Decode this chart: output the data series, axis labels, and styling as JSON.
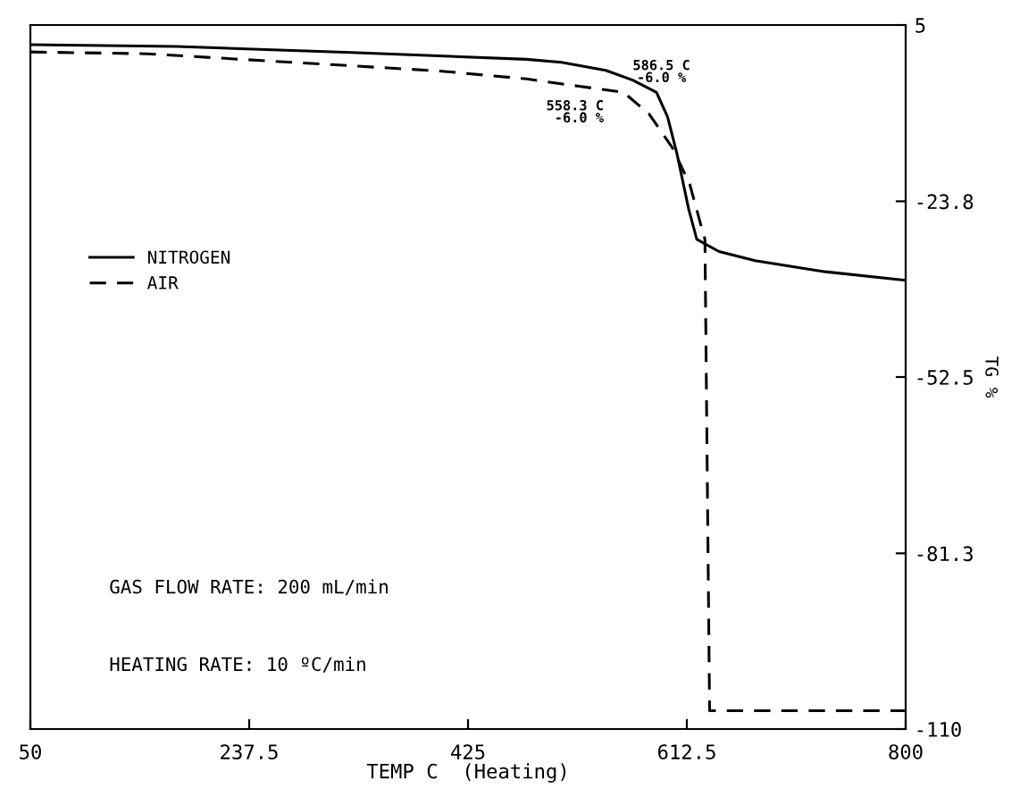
{
  "chart_data": {
    "type": "line",
    "xlabel": "TEMP C  (Heating)",
    "ylabel": "TG %",
    "xlim": [
      50,
      800
    ],
    "xticks": [
      50,
      237.5,
      425,
      612.5,
      800
    ],
    "ylim": [
      -110,
      5
    ],
    "yticks": [
      5,
      -23.8,
      -52.5,
      -81.3,
      -110
    ],
    "grid": false,
    "legend": "center left",
    "marker": "none",
    "series": [
      {
        "name": "NITROGEN",
        "color": "#000000",
        "line_style": "solid",
        "x": [
          50,
          175,
          325,
          475,
          505,
          543,
          566,
          586.5,
          596,
          604,
          614,
          621,
          640,
          671,
          731,
          800
        ],
        "values": [
          1.8,
          1.5,
          0.5,
          -0.6,
          -1.1,
          -2.4,
          -4,
          -6,
          -10,
          -16,
          -25,
          -30,
          -32,
          -33.5,
          -35.3,
          -36.7
        ]
      },
      {
        "name": "AIR",
        "color": "#000000",
        "line_style": "dashed",
        "x": [
          50,
          150,
          275,
          400,
          475,
          520,
          558.3,
          580,
          600,
          615,
          625,
          628,
          632,
          800
        ],
        "values": [
          0.6,
          0.3,
          -1.1,
          -2.5,
          -3.8,
          -5,
          -6,
          -9.5,
          -15,
          -21,
          -28,
          -30,
          -107,
          -107
        ]
      }
    ],
    "annotations": [
      {
        "text": "586.5 C\n-6.0 %",
        "x": 586.5,
        "y": -6
      },
      {
        "text": "558.3 C\n-6.0 %",
        "x": 558.3,
        "y": -6
      },
      "GAS FLOW RATE: 200 mL/min",
      "HEATING RATE: 10 ºC/min"
    ]
  }
}
